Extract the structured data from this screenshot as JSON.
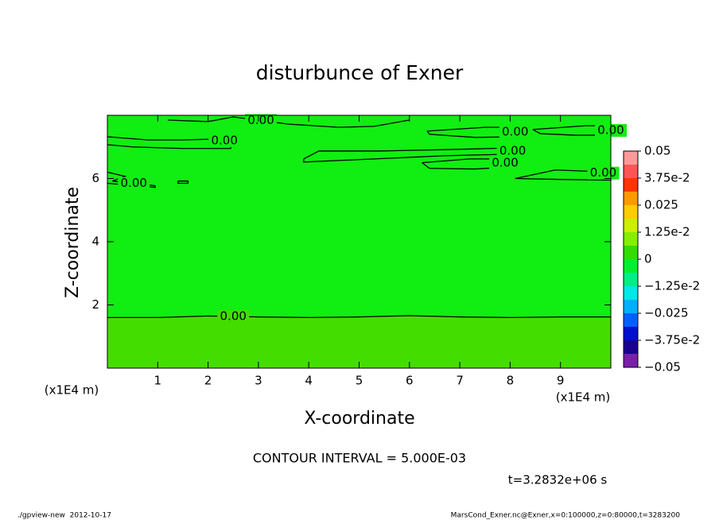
{
  "chart_data": {
    "type": "contour",
    "title": "disturbunce of Exner",
    "xlabel": "X-coordinate",
    "ylabel": "Z-coordinate",
    "x_unit": "(x1E4 m)",
    "y_unit": "(x1E4 m)",
    "xlim": [
      0,
      10
    ],
    "ylim": [
      0,
      8
    ],
    "xticks": [
      1,
      2,
      3,
      4,
      5,
      6,
      7,
      8,
      9
    ],
    "yticks": [
      2,
      4,
      6
    ],
    "background_color": "#11ee11",
    "contours": [
      {
        "level": 0,
        "level_label": "0.00",
        "fill": "#44dd00",
        "x": [
          0,
          1,
          2,
          3,
          4,
          5,
          6,
          7,
          8,
          9,
          10
        ],
        "y": [
          1.6,
          1.6,
          1.65,
          1.62,
          1.6,
          1.62,
          1.66,
          1.62,
          1.6,
          1.62,
          1.62
        ]
      },
      {
        "level": 0,
        "level_label": "0.00",
        "x": [
          0,
          0.8,
          1.5,
          2.2,
          2.45,
          2.45,
          1.5,
          0.5,
          0
        ],
        "y": [
          7.32,
          7.22,
          7.22,
          7.25,
          7.15,
          6.95,
          6.95,
          7.0,
          7.07
        ]
      },
      {
        "level": 0,
        "level_label": "0.00",
        "x": [
          1.2,
          2.0,
          2.5,
          3.6,
          4.6,
          5.3,
          6.0
        ],
        "y": [
          7.85,
          7.8,
          7.95,
          7.72,
          7.62,
          7.65,
          7.85
        ]
      },
      {
        "level": 0,
        "level_label": "0.00",
        "x": [
          3.9,
          4.2,
          5.4,
          6.9,
          8.1,
          8.0,
          6.7,
          5.3,
          3.9,
          3.9
        ],
        "y": [
          6.62,
          6.87,
          6.87,
          6.92,
          6.97,
          6.77,
          6.72,
          6.62,
          6.52,
          6.62
        ]
      },
      {
        "level": 0,
        "level_label": "0.00",
        "x": [
          6.35,
          7.5,
          8.1,
          8.1,
          7.3,
          6.4,
          6.35
        ],
        "y": [
          7.5,
          7.62,
          7.62,
          7.32,
          7.3,
          7.4,
          7.5
        ]
      },
      {
        "level": 0,
        "level_label": "0.00",
        "x": [
          6.25,
          7.2,
          7.7,
          8.1,
          7.3,
          6.4,
          6.25
        ],
        "y": [
          6.5,
          6.62,
          6.62,
          6.37,
          6.3,
          6.32,
          6.5
        ]
      },
      {
        "level": 0,
        "level_label": "0.00",
        "x": [
          8.1,
          8.9,
          9.7,
          10,
          10,
          9.0,
          8.1
        ],
        "y": [
          6.0,
          6.27,
          6.22,
          6.12,
          5.95,
          5.97,
          6.0
        ]
      },
      {
        "level": 0,
        "level_label": "0.00",
        "x": [
          8.45,
          9.5,
          10,
          10,
          9.3,
          8.6,
          8.45
        ],
        "y": [
          7.55,
          7.67,
          7.67,
          7.37,
          7.37,
          7.42,
          7.55
        ]
      },
      {
        "level": 0,
        "level_label": "0.00",
        "x": [
          0,
          0.35,
          0.1,
          0.95,
          0.95,
          0
        ],
        "y": [
          6.2,
          6.07,
          5.92,
          5.77,
          5.72,
          5.85
        ]
      },
      {
        "level": 0,
        "level_label": "0.00",
        "x": [
          1.4,
          1.6,
          1.6,
          1.4,
          1.4
        ],
        "y": [
          5.92,
          5.92,
          5.85,
          5.85,
          5.92
        ]
      }
    ],
    "colorbar": {
      "levels": [
        -0.05,
        -0.04375,
        -0.0375,
        -0.03125,
        -0.025,
        -0.01875,
        -0.0125,
        -0.00625,
        0,
        0.00625,
        0.0125,
        0.01875,
        0.025,
        0.03125,
        0.0375,
        0.04375,
        0.05
      ],
      "colors": [
        "#7a1fa8",
        "#1a0090",
        "#0010d0",
        "#0060ff",
        "#00b0ff",
        "#00e8e8",
        "#00ee88",
        "#00f030",
        "#33dd00",
        "#88ee00",
        "#ccee00",
        "#ffcc00",
        "#ff9900",
        "#ff3300",
        "#ff5555",
        "#ff9999"
      ],
      "ticks": [
        0.05,
        {
          "value": 0.0375,
          "label": "3.75e-2"
        },
        0.025,
        {
          "value": 0.0125,
          "label": "1.25e-2"
        },
        0,
        {
          "value": -0.0125,
          "label": "−1.25e-2"
        },
        {
          "value": -0.025,
          "label": "−0.025"
        },
        {
          "value": -0.0375,
          "label": "−3.75e-2"
        },
        {
          "value": -0.05,
          "label": "−0.05"
        }
      ]
    },
    "note": "CONTOUR INTERVAL = 5.000E-03",
    "time_label": "t=3.2832e+06 s",
    "footer_left": "./gpview-new  2012-10-17",
    "footer_right": "MarsCond_Exner.nc@Exner,x=0:100000,z=0:80000,t=3283200"
  }
}
